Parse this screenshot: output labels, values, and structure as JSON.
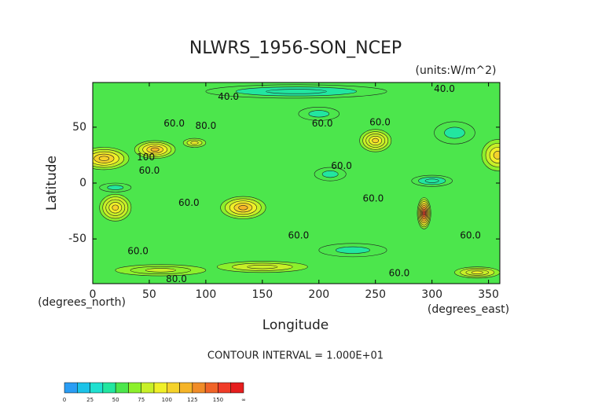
{
  "chart_data": {
    "type": "contour-map",
    "title": "NLWRS_1956-SON_NCEP",
    "units": "(units:W/m^2)",
    "x_label": "Longitude",
    "y_label": "Latitude",
    "x_unit_label": "(degrees_east)",
    "y_unit_label": "(degrees_north)",
    "note": "CONTOUR INTERVAL = 1.000E+01",
    "xlim": [
      0,
      360
    ],
    "ylim": [
      -90,
      90
    ],
    "xticks": [
      0,
      50,
      100,
      150,
      200,
      250,
      300,
      350
    ],
    "yticks": [
      -50,
      0,
      50
    ],
    "background_value": 60,
    "hotspots": [
      {
        "lon": 10,
        "lat": 22,
        "rx": 22,
        "ry": 10,
        "value": 110
      },
      {
        "lon": 55,
        "lat": 30,
        "rx": 18,
        "ry": 8,
        "value": 115
      },
      {
        "lon": 90,
        "lat": 36,
        "rx": 10,
        "ry": 4,
        "value": 90
      },
      {
        "lon": 250,
        "lat": 38,
        "rx": 14,
        "ry": 10,
        "value": 105
      },
      {
        "lon": 358,
        "lat": 25,
        "rx": 14,
        "ry": 14,
        "value": 100
      },
      {
        "lon": 20,
        "lat": -22,
        "rx": 14,
        "ry": 12,
        "value": 105
      },
      {
        "lon": 133,
        "lat": -22,
        "rx": 20,
        "ry": 10,
        "value": 115
      },
      {
        "lon": 293,
        "lat": -27,
        "rx": 6,
        "ry": 14,
        "value": 150
      },
      {
        "lon": 150,
        "lat": -75,
        "rx": 40,
        "ry": 5,
        "value": 85
      },
      {
        "lon": 340,
        "lat": -80,
        "rx": 20,
        "ry": 5,
        "value": 95
      },
      {
        "lon": 60,
        "lat": -78,
        "rx": 40,
        "ry": 5,
        "value": 80
      },
      {
        "lon": 200,
        "lat": 62,
        "rx": 18,
        "ry": 6,
        "value": 45
      },
      {
        "lon": 300,
        "lat": 2,
        "rx": 18,
        "ry": 5,
        "value": 40
      },
      {
        "lon": 210,
        "lat": 8,
        "rx": 14,
        "ry": 6,
        "value": 45
      },
      {
        "lon": 180,
        "lat": 82,
        "rx": 80,
        "ry": 6,
        "value": 40
      },
      {
        "lon": 20,
        "lat": -4,
        "rx": 14,
        "ry": 4,
        "value": 45
      },
      {
        "lon": 320,
        "lat": 45,
        "rx": 18,
        "ry": 10,
        "value": 45
      },
      {
        "lon": 230,
        "lat": -60,
        "rx": 30,
        "ry": 6,
        "value": 45
      }
    ],
    "contour_labels": [
      {
        "text": "40.0",
        "lon": 120,
        "lat": 77
      },
      {
        "text": "40.0",
        "lon": 311,
        "lat": 84
      },
      {
        "text": "60.0",
        "lon": 72,
        "lat": 53
      },
      {
        "text": "80.0",
        "lon": 100,
        "lat": 51
      },
      {
        "text": "60.0",
        "lon": 203,
        "lat": 53
      },
      {
        "text": "60.0",
        "lon": 254,
        "lat": 54
      },
      {
        "text": "100",
        "lon": 47,
        "lat": 23
      },
      {
        "text": "60.0",
        "lon": 50,
        "lat": 11
      },
      {
        "text": "60.0",
        "lon": 220,
        "lat": 15
      },
      {
        "text": "60.0",
        "lon": 85,
        "lat": -18
      },
      {
        "text": "60.0",
        "lon": 248,
        "lat": -14
      },
      {
        "text": "60.0",
        "lon": 182,
        "lat": -47
      },
      {
        "text": "60.0",
        "lon": 334,
        "lat": -47
      },
      {
        "text": "60.0",
        "lon": 40,
        "lat": -61
      },
      {
        "text": "80.0",
        "lon": 74,
        "lat": -86
      },
      {
        "text": "60.0",
        "lon": 271,
        "lat": -81
      }
    ],
    "colorbar": {
      "step": 12.5,
      "colors": [
        "#2a9df4",
        "#1cc3e8",
        "#20e0d0",
        "#22e6a0",
        "#4ce64c",
        "#8cf02c",
        "#c8f028",
        "#f0f028",
        "#f5d22a",
        "#f5b428",
        "#f08c28",
        "#f06428",
        "#f03c28",
        "#e61e1e"
      ],
      "ticks": [
        0,
        25,
        50,
        75,
        100,
        125,
        150
      ],
      "end_label": "∞"
    }
  }
}
